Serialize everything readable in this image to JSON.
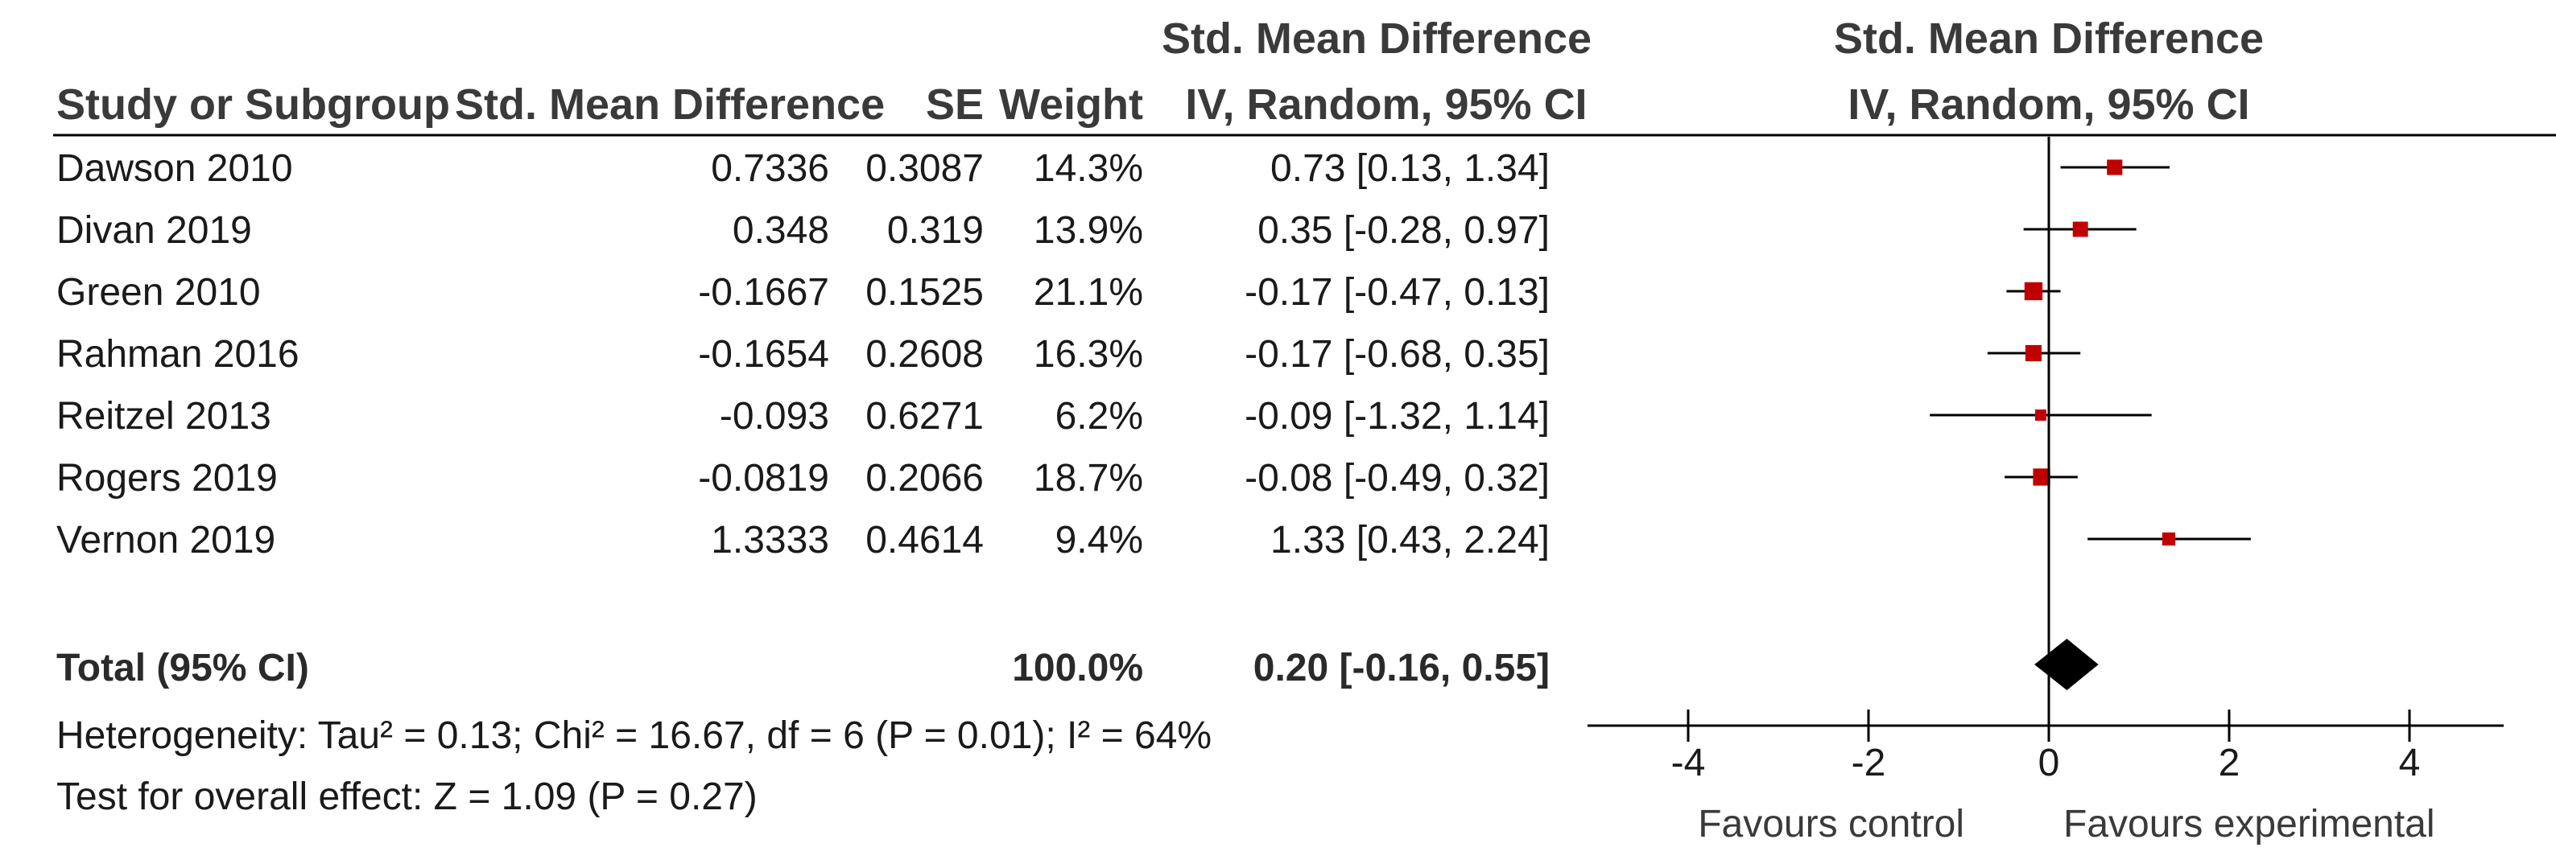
{
  "chart_data": {
    "type": "forest",
    "headers": {
      "study": "Study or Subgroup",
      "smd": "Std. Mean Difference",
      "se": "SE",
      "weight": "Weight",
      "ci_top": "Std. Mean Difference",
      "ci_bottom": "IV, Random, 95% CI",
      "plot_top": "Std. Mean Difference",
      "plot_bottom": "IV, Random, 95% CI"
    },
    "studies": [
      {
        "name": "Dawson 2010",
        "smd": "0.7336",
        "se": "0.3087",
        "weight": "14.3%",
        "ci": "0.73 [0.13, 1.34]",
        "est": 0.73,
        "lo": 0.13,
        "hi": 1.34,
        "w": 14.3
      },
      {
        "name": "Divan 2019",
        "smd": "0.348",
        "se": "0.319",
        "weight": "13.9%",
        "ci": "0.35 [-0.28, 0.97]",
        "est": 0.35,
        "lo": -0.28,
        "hi": 0.97,
        "w": 13.9
      },
      {
        "name": "Green 2010",
        "smd": "-0.1667",
        "se": "0.1525",
        "weight": "21.1%",
        "ci": "-0.17 [-0.47, 0.13]",
        "est": -0.17,
        "lo": -0.47,
        "hi": 0.13,
        "w": 21.1
      },
      {
        "name": "Rahman 2016",
        "smd": "-0.1654",
        "se": "0.2608",
        "weight": "16.3%",
        "ci": "-0.17 [-0.68, 0.35]",
        "est": -0.17,
        "lo": -0.68,
        "hi": 0.35,
        "w": 16.3
      },
      {
        "name": "Reitzel 2013",
        "smd": "-0.093",
        "se": "0.6271",
        "weight": "6.2%",
        "ci": "-0.09 [-1.32, 1.14]",
        "est": -0.09,
        "lo": -1.32,
        "hi": 1.14,
        "w": 6.2
      },
      {
        "name": "Rogers 2019",
        "smd": "-0.0819",
        "se": "0.2066",
        "weight": "18.7%",
        "ci": "-0.08 [-0.49, 0.32]",
        "est": -0.08,
        "lo": -0.49,
        "hi": 0.32,
        "w": 18.7
      },
      {
        "name": "Vernon 2019",
        "smd": "1.3333",
        "se": "0.4614",
        "weight": "9.4%",
        "ci": "1.33 [0.43, 2.24]",
        "est": 1.33,
        "lo": 0.43,
        "hi": 2.24,
        "w": 9.4
      }
    ],
    "total": {
      "label": "Total (95% CI)",
      "weight": "100.0%",
      "ci": "0.20 [-0.16, 0.55]",
      "est": 0.2,
      "lo": -0.16,
      "hi": 0.55
    },
    "heterogeneity": "Heterogeneity: Tau² = 0.13; Chi² = 16.67, df = 6 (P = 0.01); I² = 64%",
    "overall_effect": "Test for overall effect: Z = 1.09 (P = 0.27)",
    "x_axis": {
      "min": -5,
      "max": 5,
      "ticks": [
        -4,
        -2,
        0,
        2,
        4
      ],
      "tick_labels": [
        "-4",
        "-2",
        "0",
        "2",
        "4"
      ]
    },
    "favours_left": "Favours control",
    "favours_right": "Favours experimental",
    "colors": {
      "marker": "#c00000",
      "text": "#1a1a1a",
      "header": "#3a3a3a",
      "line": "#000000"
    }
  }
}
